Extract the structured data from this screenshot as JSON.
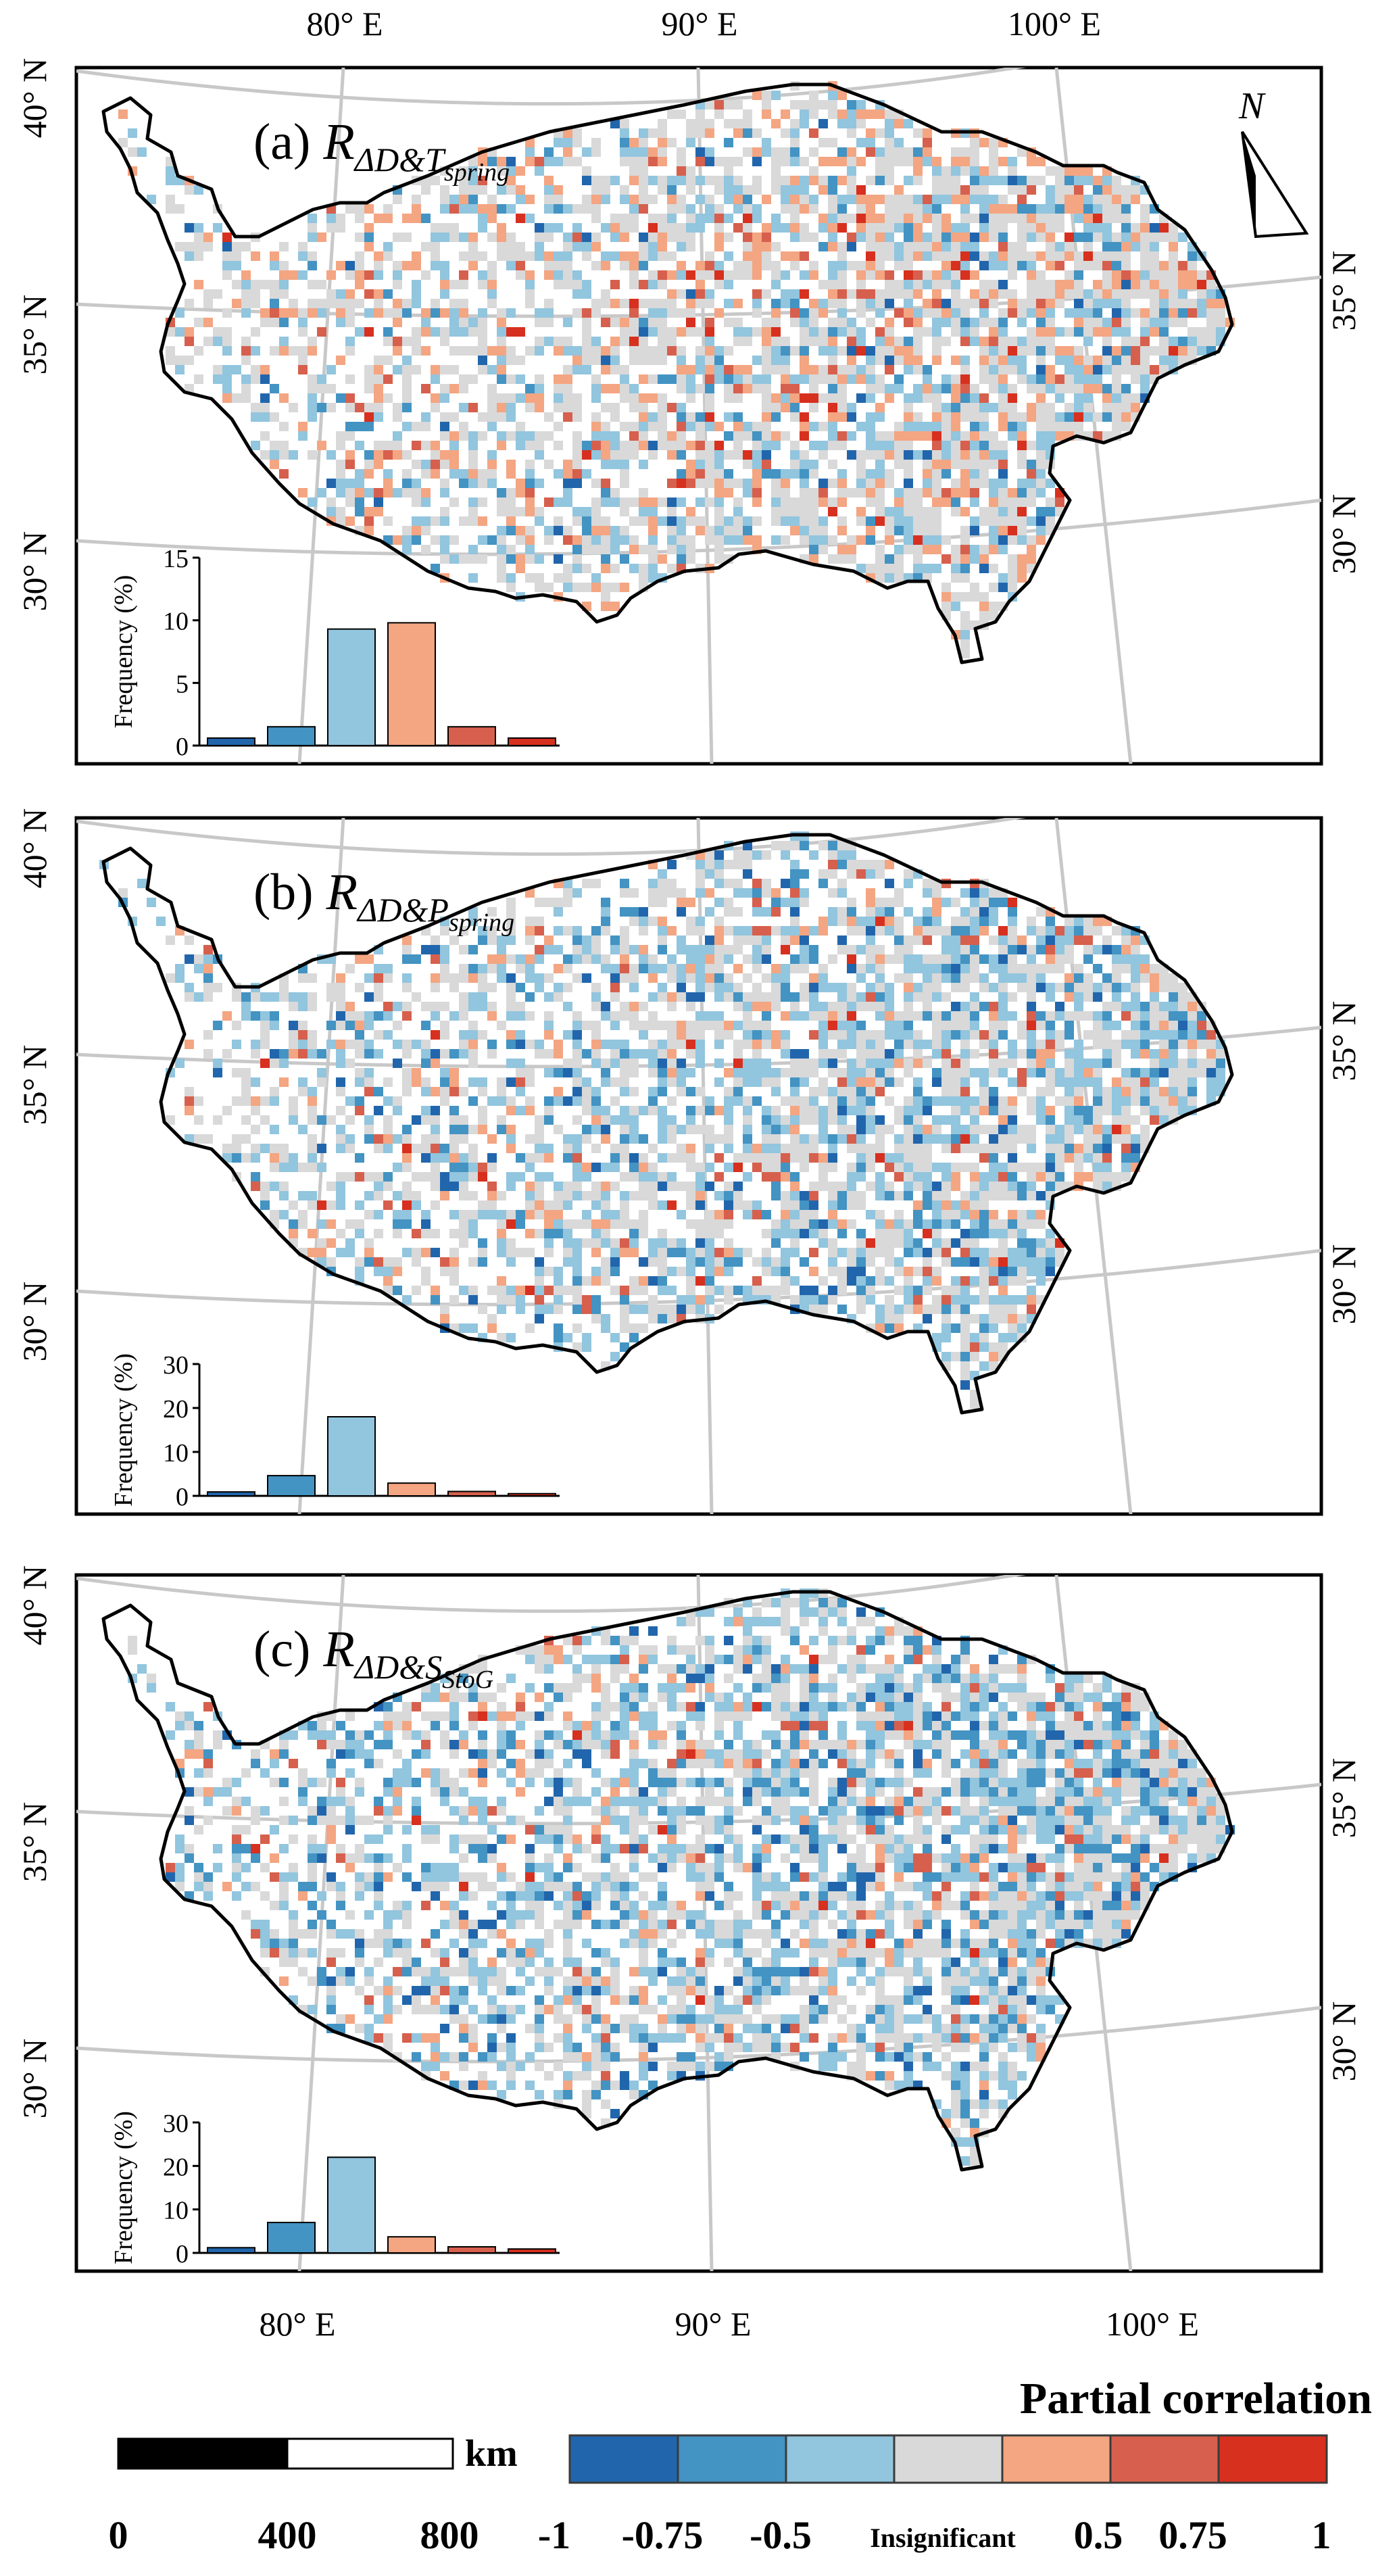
{
  "top_lon_labels": [
    "80° E",
    "90° E",
    "100° E"
  ],
  "bottom_lon_labels": [
    "80° E",
    "90° E",
    "100° E"
  ],
  "panels": [
    {
      "tag": "(a) ",
      "formula_main": "R",
      "formula_sub1": "ΔD&T",
      "formula_sub2": "spring",
      "lat_left": [
        "40° N",
        "35° N",
        "30° N"
      ],
      "lat_right": [
        "35° N",
        "30° N"
      ],
      "inset_ylabel": "Frequency (%)",
      "inset_ticks": [
        "0",
        "5",
        "10",
        "15"
      ],
      "inset_ymax": 15,
      "inset_values": [
        0.6,
        1.5,
        9.3,
        9.8,
        1.5,
        0.6
      ]
    },
    {
      "tag": "(b) ",
      "formula_main": "R",
      "formula_sub1": "ΔD&P",
      "formula_sub2": "spring",
      "lat_left": [
        "40° N",
        "35° N",
        "30° N"
      ],
      "lat_right": [
        "35° N",
        "30° N"
      ],
      "inset_ylabel": "Frequency (%)",
      "inset_ticks": [
        "0",
        "10",
        "20",
        "30"
      ],
      "inset_ymax": 30,
      "inset_values": [
        0.9,
        4.6,
        18.0,
        2.9,
        1.0,
        0.5
      ]
    },
    {
      "tag": "(c) ",
      "formula_main": "R",
      "formula_sub1": "ΔD&S",
      "formula_sub2": "StoG",
      "lat_left": [
        "40° N",
        "35° N",
        "30° N"
      ],
      "lat_right": [
        "35° N",
        "30° N"
      ],
      "inset_ylabel": "Frequency (%)",
      "inset_ticks": [
        "0",
        "10",
        "20",
        "30"
      ],
      "inset_ymax": 30,
      "inset_values": [
        1.2,
        7.0,
        22.0,
        3.7,
        1.4,
        0.9
      ]
    }
  ],
  "north_label": "N",
  "scalebar": {
    "unit": "km",
    "ticks": [
      "0",
      "400",
      "800"
    ]
  },
  "legend": {
    "title": "Partial correlation",
    "colors": [
      "#2166ac",
      "#4393c3",
      "#92c5de",
      "#d9d9d9",
      "#f4a582",
      "#d6604d",
      "#d7301f"
    ],
    "ticks": [
      "-1",
      "-0.75",
      "-0.5",
      "Insignificant",
      "0.5",
      "0.75",
      "1"
    ]
  }
}
